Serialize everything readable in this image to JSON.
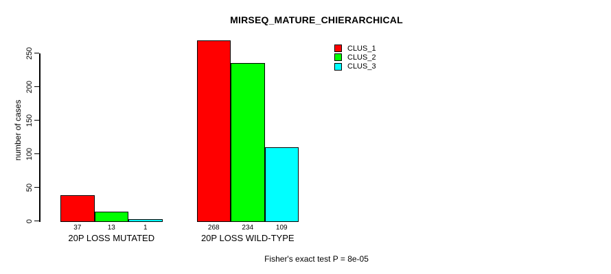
{
  "chart_data": {
    "type": "bar",
    "title": "MIRSEQ_MATURE_CHIERARCHICAL",
    "ylabel": "number of cases",
    "xlabel": "",
    "categories": [
      "20P LOSS MUTATED",
      "20P LOSS WILD-TYPE"
    ],
    "series": [
      {
        "name": "CLUS_1",
        "color": "#ff0000",
        "values": [
          37,
          268
        ]
      },
      {
        "name": "CLUS_2",
        "color": "#00ff00",
        "values": [
          13,
          234
        ]
      },
      {
        "name": "CLUS_3",
        "color": "#00ffff",
        "values": [
          1,
          109
        ]
      }
    ],
    "bar_value_labels": [
      [
        "37",
        "13",
        "1"
      ],
      [
        "268",
        "234",
        "109"
      ]
    ],
    "yticks": [
      "0",
      "50",
      "100",
      "150",
      "200",
      "250"
    ],
    "ylim": [
      0,
      268
    ],
    "grid": false,
    "legend_position": "top-right",
    "bar_border_color": "#000000",
    "background_color": "#ffffff",
    "footnote": "Fisher's exact test P = 8e-05"
  }
}
